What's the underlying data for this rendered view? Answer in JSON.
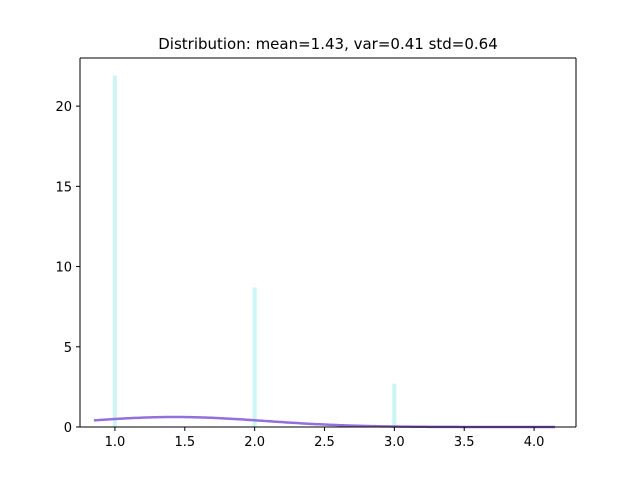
{
  "chart_data": {
    "type": "bar",
    "title": "Distribution: mean=1.43, var=0.41 std=0.64",
    "xlabel": "",
    "ylabel": "",
    "xlim": [
      0.75,
      4.3
    ],
    "ylim": [
      0,
      23
    ],
    "x_ticks": [
      1.0,
      1.5,
      2.0,
      2.5,
      3.0,
      3.5,
      4.0
    ],
    "x_tick_labels": [
      "1.0",
      "1.5",
      "2.0",
      "2.5",
      "3.0",
      "3.5",
      "4.0"
    ],
    "y_ticks": [
      0,
      5,
      10,
      15,
      20
    ],
    "y_tick_labels": [
      "0",
      "5",
      "10",
      "15",
      "20"
    ],
    "grid": false,
    "histogram": {
      "x": [
        1.0,
        2.0,
        3.0
      ],
      "values": [
        21.9,
        8.7,
        2.7
      ],
      "bar_width": 0.03,
      "color": "#cdf5f3"
    },
    "density_curve": {
      "mean": 1.43,
      "std": 0.64,
      "scale": 1.0,
      "x_range": [
        0.85,
        4.15
      ],
      "color": "#9370db"
    }
  }
}
